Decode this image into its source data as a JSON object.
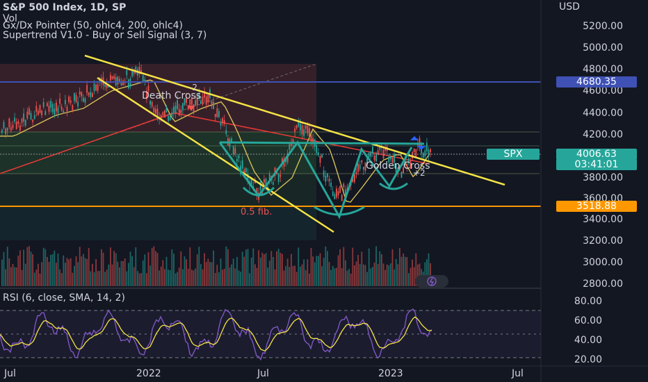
{
  "header": {
    "symbol_line": "S&P 500 Index, 1D, SP",
    "vol_label": "Vol",
    "indicator_1": "Gx/Dx Pointer (50, ohlc4, 200, ohlc4)",
    "indicator_2": "Supertrend V1.0 - Buy or Sell Signal (3, 7)"
  },
  "price_axis": {
    "currency": "USD",
    "ticks": [
      "5200.00",
      "5000.00",
      "4800.00",
      "4600.00",
      "4400.00",
      "4200.00",
      "4000.00",
      "3800.00",
      "3600.00",
      "3400.00",
      "3200.00",
      "3000.00",
      "2800.00"
    ]
  },
  "price_tags": {
    "resistance": "4680.35",
    "support": "3518.88",
    "symbol": "SPX",
    "last_price": "4006.63",
    "countdown": "03:41:01"
  },
  "rsi": {
    "title": "RSI (6, close, SMA, 14, 2)",
    "ticks": [
      "80.00",
      "60.00",
      "40.00",
      "20.00"
    ]
  },
  "time_axis": [
    "Jul",
    "2022",
    "Jul",
    "2023",
    "Jul"
  ],
  "annotations": {
    "death_cross": "Death Cross",
    "death_cross_marker": "-2",
    "golden_cross": "Golden Cross",
    "golden_cross_marker": "+2",
    "fib": "0.5 fib."
  },
  "colors": {
    "background": "#131722",
    "resistance_line": "#3f51b5",
    "support_line": "#ff9800",
    "trendline": "#f5e346",
    "pattern": "#26a69a",
    "up": "#26a69a",
    "down": "#ef5350",
    "rsi": "#7e57c2",
    "rsi_ma": "#f5e346"
  }
}
